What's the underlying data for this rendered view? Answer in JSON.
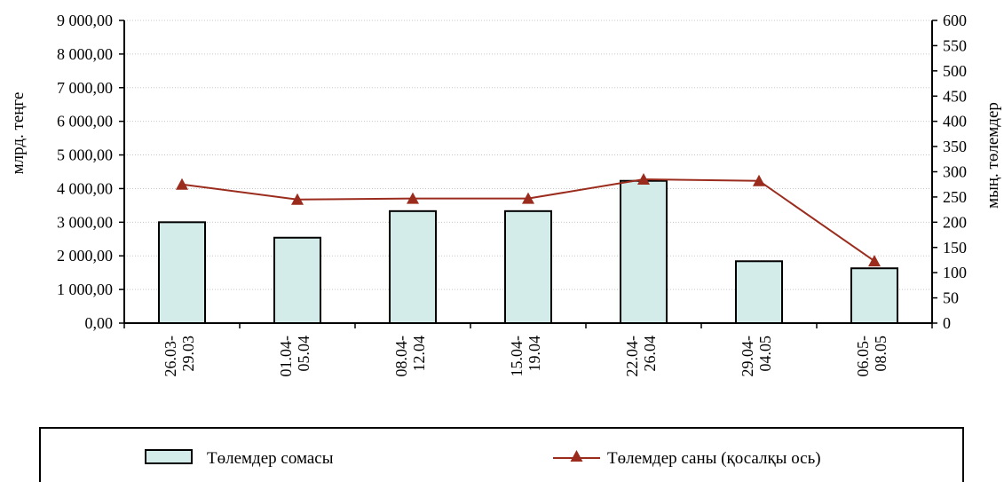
{
  "chart_data": {
    "type": "bar",
    "categories": [
      [
        "26.03-",
        "29.03"
      ],
      [
        "01.04-",
        "05.04"
      ],
      [
        "08.04-",
        "12.04"
      ],
      [
        "15.04-",
        "19.04"
      ],
      [
        "22.04-",
        "26.04"
      ],
      [
        "29.04-",
        "04.05"
      ],
      [
        "06.05-",
        "08.05"
      ]
    ],
    "ylabel_left": "млрд. теңге",
    "ylabel_right": "мың. төлемдер",
    "ylim_left": [
      0,
      9000
    ],
    "ylim_right": [
      0,
      600
    ],
    "yticks_left": [
      "0,00",
      "1 000,00",
      "2 000,00",
      "3 000,00",
      "4 000,00",
      "5 000,00",
      "6 000,00",
      "7 000,00",
      "8 000,00",
      "9 000,00"
    ],
    "yticks_right": [
      "0",
      "50",
      "100",
      "150",
      "200",
      "250",
      "300",
      "350",
      "400",
      "450",
      "500",
      "550",
      "600"
    ],
    "grid": true,
    "legend_position": "bottom",
    "series": [
      {
        "name": "Төлемдер сомасы",
        "type": "bar",
        "axis": "left",
        "values": [
          3000,
          2540,
          3330,
          3330,
          4230,
          1840,
          1630
        ],
        "color": "#d3ecea"
      },
      {
        "name": "Төлемдер саны (қосалқы ось)",
        "type": "line",
        "axis": "right",
        "marker": "triangle",
        "values": [
          275,
          245,
          247,
          247,
          285,
          282,
          123
        ],
        "color": "#9b2c1d"
      }
    ]
  }
}
